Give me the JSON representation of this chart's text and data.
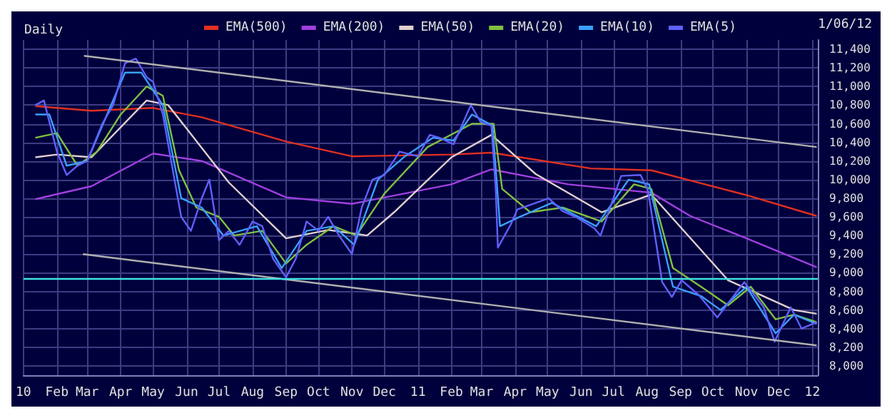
{
  "chart_data": {
    "type": "line",
    "title": "Daily",
    "annotations": [
      "1/06/12"
    ],
    "legend": "top",
    "grid": true,
    "marker": "none",
    "line_style": "solid",
    "xlim": [
      "2010-01-01",
      "2012-01-06"
    ],
    "xticks": [
      {
        "value": "2010-01-01",
        "label": "10"
      },
      {
        "value": "2010-02-01",
        "label": "Feb"
      },
      {
        "value": "2010-03-01",
        "label": "Mar"
      },
      {
        "value": "2010-04-01",
        "label": "Apr"
      },
      {
        "value": "2010-05-01",
        "label": "May"
      },
      {
        "value": "2010-06-01",
        "label": "Jun"
      },
      {
        "value": "2010-07-01",
        "label": "Jul"
      },
      {
        "value": "2010-08-01",
        "label": "Aug"
      },
      {
        "value": "2010-09-01",
        "label": "Sep"
      },
      {
        "value": "2010-10-01",
        "label": "Oct"
      },
      {
        "value": "2010-11-01",
        "label": "Nov"
      },
      {
        "value": "2010-12-01",
        "label": "Dec"
      },
      {
        "value": "2011-01-01",
        "label": "11"
      },
      {
        "value": "2011-02-01",
        "label": "Feb"
      },
      {
        "value": "2011-03-01",
        "label": "Mar"
      },
      {
        "value": "2011-04-01",
        "label": "Apr"
      },
      {
        "value": "2011-05-01",
        "label": "May"
      },
      {
        "value": "2011-06-01",
        "label": "Jun"
      },
      {
        "value": "2011-07-01",
        "label": "Jul"
      },
      {
        "value": "2011-08-01",
        "label": "Aug"
      },
      {
        "value": "2011-09-01",
        "label": "Sep"
      },
      {
        "value": "2011-10-01",
        "label": "Oct"
      },
      {
        "value": "2011-11-01",
        "label": "Nov"
      },
      {
        "value": "2011-12-01",
        "label": "Dec"
      },
      {
        "value": "2012-01-01",
        "label": "12"
      }
    ],
    "ylim": [
      7900,
      11500
    ],
    "yticks": [
      {
        "value": 8000,
        "label": "8,000"
      },
      {
        "value": 8200,
        "label": "8,200"
      },
      {
        "value": 8400,
        "label": "8,400"
      },
      {
        "value": 8600,
        "label": "8,600"
      },
      {
        "value": 8800,
        "label": "8,800"
      },
      {
        "value": 9000,
        "label": "9,000"
      },
      {
        "value": 9200,
        "label": "9,200"
      },
      {
        "value": 9400,
        "label": "9,400"
      },
      {
        "value": 9600,
        "label": "9,600"
      },
      {
        "value": 9800,
        "label": "9,800"
      },
      {
        "value": 10000,
        "label": "10,000"
      },
      {
        "value": 10200,
        "label": "10,200"
      },
      {
        "value": 10400,
        "label": "10,400"
      },
      {
        "value": 10600,
        "label": "10,600"
      },
      {
        "value": 10800,
        "label": "10,800"
      },
      {
        "value": 11000,
        "label": "11,000"
      },
      {
        "value": 11200,
        "label": "11,200"
      },
      {
        "value": 11400,
        "label": "11,400"
      }
    ],
    "ref_lines": [
      {
        "axis": "y",
        "value": 8940,
        "color": "#40e0e0"
      }
    ],
    "series": [
      {
        "name": "EMA(500)",
        "color": "#e03020",
        "x": [
          "2010-01-12",
          "2010-03-05",
          "2010-05-01",
          "2010-06-15",
          "2010-09-01",
          "2010-11-01",
          "2011-02-01",
          "2011-03-10",
          "2011-06-10",
          "2011-08-05",
          "2011-10-30",
          "2012-01-05"
        ],
        "values": [
          10790,
          10740,
          10770,
          10670,
          10410,
          10250,
          10270,
          10290,
          10120,
          10100,
          9840,
          9610
        ]
      },
      {
        "name": "EMA(200)",
        "color": "#a040e0",
        "x": [
          "2010-01-12",
          "2010-03-05",
          "2010-05-01",
          "2010-06-15",
          "2010-09-01",
          "2010-11-01",
          "2011-02-01",
          "2011-03-10",
          "2011-05-20",
          "2011-08-05",
          "2011-09-10",
          "2011-11-01",
          "2012-01-05"
        ],
        "values": [
          9790,
          9930,
          10280,
          10200,
          9810,
          9740,
          9950,
          10110,
          9950,
          9860,
          9610,
          9370,
          9060
        ]
      },
      {
        "name": "EMA(50)",
        "color": "#e0d0d0",
        "x": [
          "2010-01-12",
          "2010-02-01",
          "2010-03-05",
          "2010-04-25",
          "2010-05-15",
          "2010-07-10",
          "2010-09-01",
          "2010-10-10",
          "2010-11-15",
          "2010-12-10",
          "2011-02-01",
          "2011-03-10",
          "2011-04-20",
          "2011-06-20",
          "2011-08-05",
          "2011-10-15",
          "2011-12-15",
          "2012-01-05"
        ],
        "values": [
          10240,
          10270,
          10240,
          10850,
          10800,
          9970,
          9370,
          9460,
          9400,
          9650,
          10240,
          10480,
          10060,
          9650,
          9840,
          8920,
          8600,
          8560
        ]
      },
      {
        "name": "EMA(20)",
        "color": "#80c040",
        "x": [
          "2010-01-12",
          "2010-02-01",
          "2010-02-20",
          "2010-03-10",
          "2010-04-01",
          "2010-04-25",
          "2010-05-10",
          "2010-05-25",
          "2010-06-10",
          "2010-07-01",
          "2010-07-15",
          "2010-08-10",
          "2010-09-01",
          "2010-09-20",
          "2010-10-15",
          "2010-11-05",
          "2010-12-01",
          "2011-01-10",
          "2011-02-20",
          "2011-03-12",
          "2011-03-20",
          "2011-04-15",
          "2011-05-15",
          "2011-06-20",
          "2011-07-20",
          "2011-08-05",
          "2011-08-25",
          "2011-09-20",
          "2011-10-15",
          "2011-11-05",
          "2011-11-28",
          "2011-12-15",
          "2012-01-05"
        ],
        "values": [
          10450,
          10500,
          10150,
          10300,
          10700,
          11000,
          10900,
          10100,
          9700,
          9600,
          9400,
          9450,
          9100,
          9300,
          9500,
          9400,
          9850,
          10350,
          10600,
          10600,
          9900,
          9650,
          9700,
          9550,
          9950,
          9900,
          9050,
          8850,
          8650,
          8850,
          8500,
          8550,
          8470
        ]
      },
      {
        "name": "EMA(10)",
        "color": "#3aa0ff",
        "x": [
          "2010-01-12",
          "2010-01-25",
          "2010-02-10",
          "2010-03-01",
          "2010-04-05",
          "2010-04-20",
          "2010-05-10",
          "2010-05-27",
          "2010-06-15",
          "2010-07-05",
          "2010-08-05",
          "2010-08-28",
          "2010-09-20",
          "2010-10-15",
          "2010-11-03",
          "2010-11-25",
          "2010-12-20",
          "2011-01-15",
          "2011-02-03",
          "2011-02-20",
          "2011-03-11",
          "2011-03-18",
          "2011-04-05",
          "2011-05-05",
          "2011-06-15",
          "2011-07-15",
          "2011-08-03",
          "2011-08-25",
          "2011-09-20",
          "2011-10-08",
          "2011-11-01",
          "2011-11-28",
          "2011-12-15",
          "2012-01-05"
        ],
        "values": [
          10700,
          10700,
          10150,
          10200,
          11150,
          11150,
          10800,
          9800,
          9700,
          9400,
          9500,
          9050,
          9450,
          9500,
          9300,
          10000,
          10250,
          10450,
          10420,
          10700,
          10580,
          9500,
          9600,
          9750,
          9500,
          10000,
          9950,
          8850,
          8750,
          8600,
          8850,
          8350,
          8550,
          8450
        ]
      },
      {
        "name": "EMA(5)",
        "color": "#6060ff",
        "x": [
          "2010-01-12",
          "2010-01-20",
          "2010-02-01",
          "2010-02-10",
          "2010-02-20",
          "2010-03-01",
          "2010-03-15",
          "2010-03-25",
          "2010-04-05",
          "2010-04-15",
          "2010-04-25",
          "2010-05-01",
          "2010-05-10",
          "2010-05-20",
          "2010-05-27",
          "2010-06-05",
          "2010-06-15",
          "2010-06-22",
          "2010-07-01",
          "2010-07-10",
          "2010-07-20",
          "2010-08-01",
          "2010-08-10",
          "2010-08-20",
          "2010-09-01",
          "2010-09-10",
          "2010-09-20",
          "2010-10-01",
          "2010-10-10",
          "2010-10-20",
          "2010-11-01",
          "2010-11-10",
          "2010-11-20",
          "2010-12-01",
          "2010-12-15",
          "2011-01-01",
          "2011-01-12",
          "2011-01-21",
          "2011-02-03",
          "2011-02-19",
          "2011-02-28",
          "2011-03-10",
          "2011-03-14",
          "2011-03-16",
          "2011-03-28",
          "2011-04-03",
          "2011-05-02",
          "2011-05-15",
          "2011-05-27",
          "2011-06-13",
          "2011-06-19",
          "2011-07-08",
          "2011-07-26",
          "2011-08-02",
          "2011-08-15",
          "2011-08-24",
          "2011-09-02",
          "2011-09-18",
          "2011-10-05",
          "2011-10-30",
          "2011-11-17",
          "2011-11-27",
          "2011-12-12",
          "2011-12-22",
          "2012-01-05"
        ],
        "values": [
          10800,
          10850,
          10300,
          10050,
          10150,
          10200,
          10600,
          10800,
          11250,
          11300,
          11100,
          11050,
          10700,
          10050,
          9600,
          9450,
          9800,
          10000,
          9350,
          9450,
          9300,
          9550,
          9500,
          9150,
          8950,
          9150,
          9550,
          9450,
          9600,
          9400,
          9200,
          9700,
          10000,
          10050,
          10300,
          10250,
          10480,
          10450,
          10380,
          10800,
          10620,
          10580,
          9900,
          9270,
          9520,
          9680,
          9800,
          9660,
          9600,
          9480,
          9400,
          10040,
          10050,
          9880,
          8900,
          8740,
          8920,
          8760,
          8520,
          8900,
          8630,
          8260,
          8630,
          8400,
          8470
        ]
      },
      {
        "type": "line",
        "color": "#b0b0b0",
        "x": [
          "2010-02-26",
          "2012-01-05"
        ],
        "values": [
          11330,
          10350
        ]
      },
      {
        "type": "line",
        "color": "#b0b0b0",
        "x": [
          "2010-02-25",
          "2012-01-05"
        ],
        "values": [
          9200,
          8220
        ]
      }
    ]
  }
}
